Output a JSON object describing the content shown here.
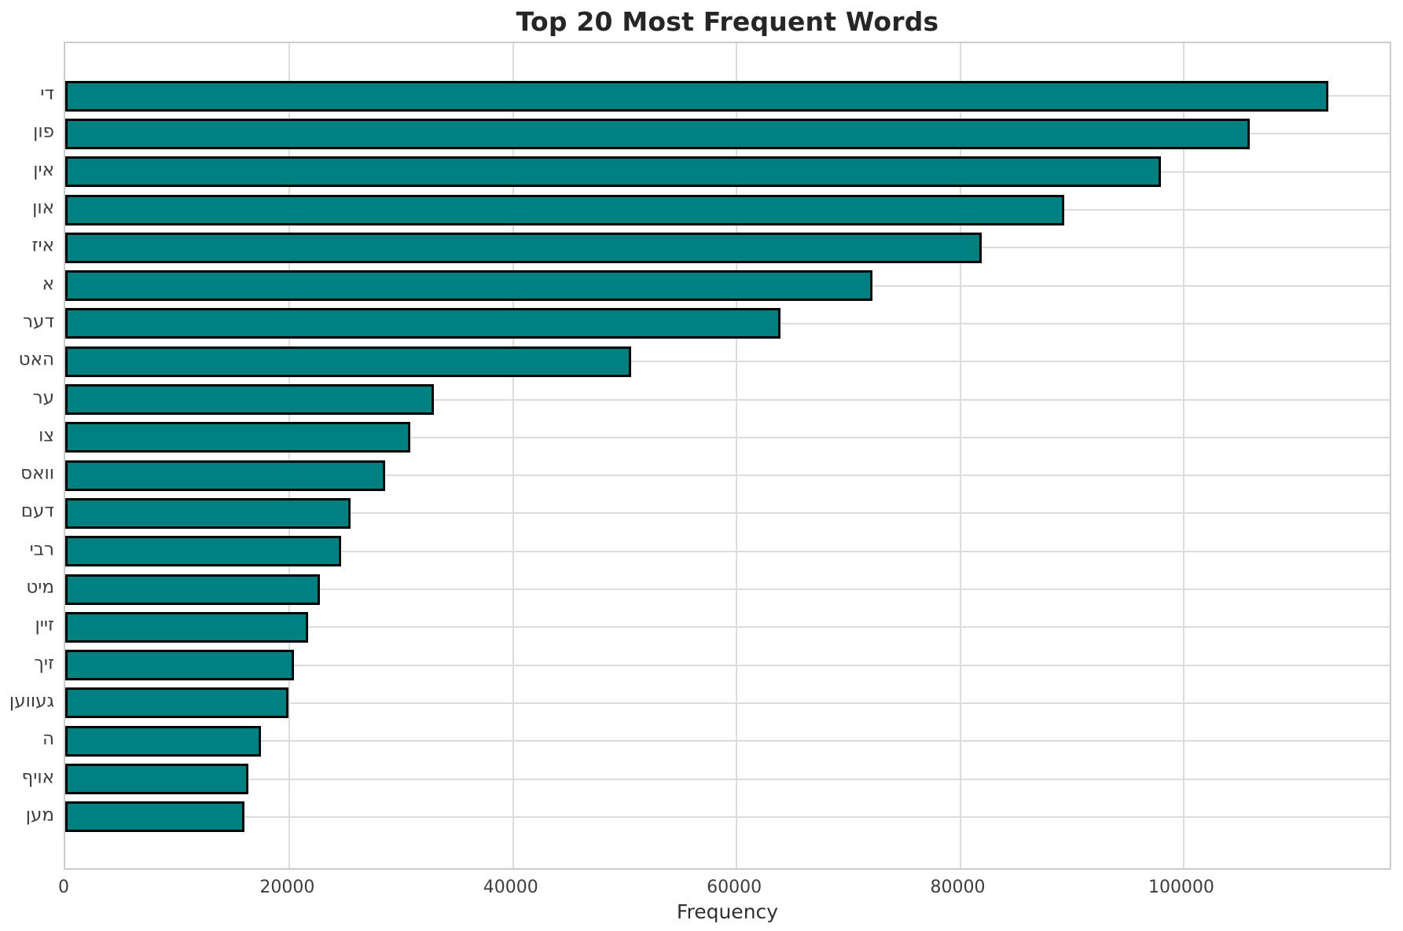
{
  "chart_data": {
    "type": "bar",
    "orientation": "horizontal",
    "title": "Top 20 Most Frequent Words",
    "xlabel": "Frequency",
    "ylabel": "",
    "categories": [
      "די",
      "פון",
      "אין",
      "און",
      "איז",
      "א",
      "דער",
      "האט",
      "ער",
      "צו",
      "וואס",
      "דעם",
      "רבי",
      "מיט",
      "זיין",
      "זיך",
      "געווען",
      "ה",
      "אויף",
      "מען"
    ],
    "values": [
      113000,
      106000,
      98000,
      89400,
      82000,
      72200,
      64000,
      50600,
      33000,
      30900,
      28600,
      25500,
      24700,
      22800,
      21700,
      20500,
      20000,
      17500,
      16400,
      16000
    ],
    "xlim": [
      0,
      118500
    ],
    "xticks": [
      0,
      20000,
      40000,
      60000,
      80000,
      100000
    ],
    "xtick_labels": [
      "0",
      "20000",
      "40000",
      "60000",
      "80000",
      "100000"
    ],
    "grid": true,
    "legend_position": "none",
    "colors": {
      "bar_fill": "#008080",
      "bar_edge": "#000000",
      "grid": "#dcdcdc",
      "spine": "#cccccc",
      "title_text": "#262626",
      "tick_text": "#3d3d3d",
      "background": "#ffffff"
    }
  }
}
